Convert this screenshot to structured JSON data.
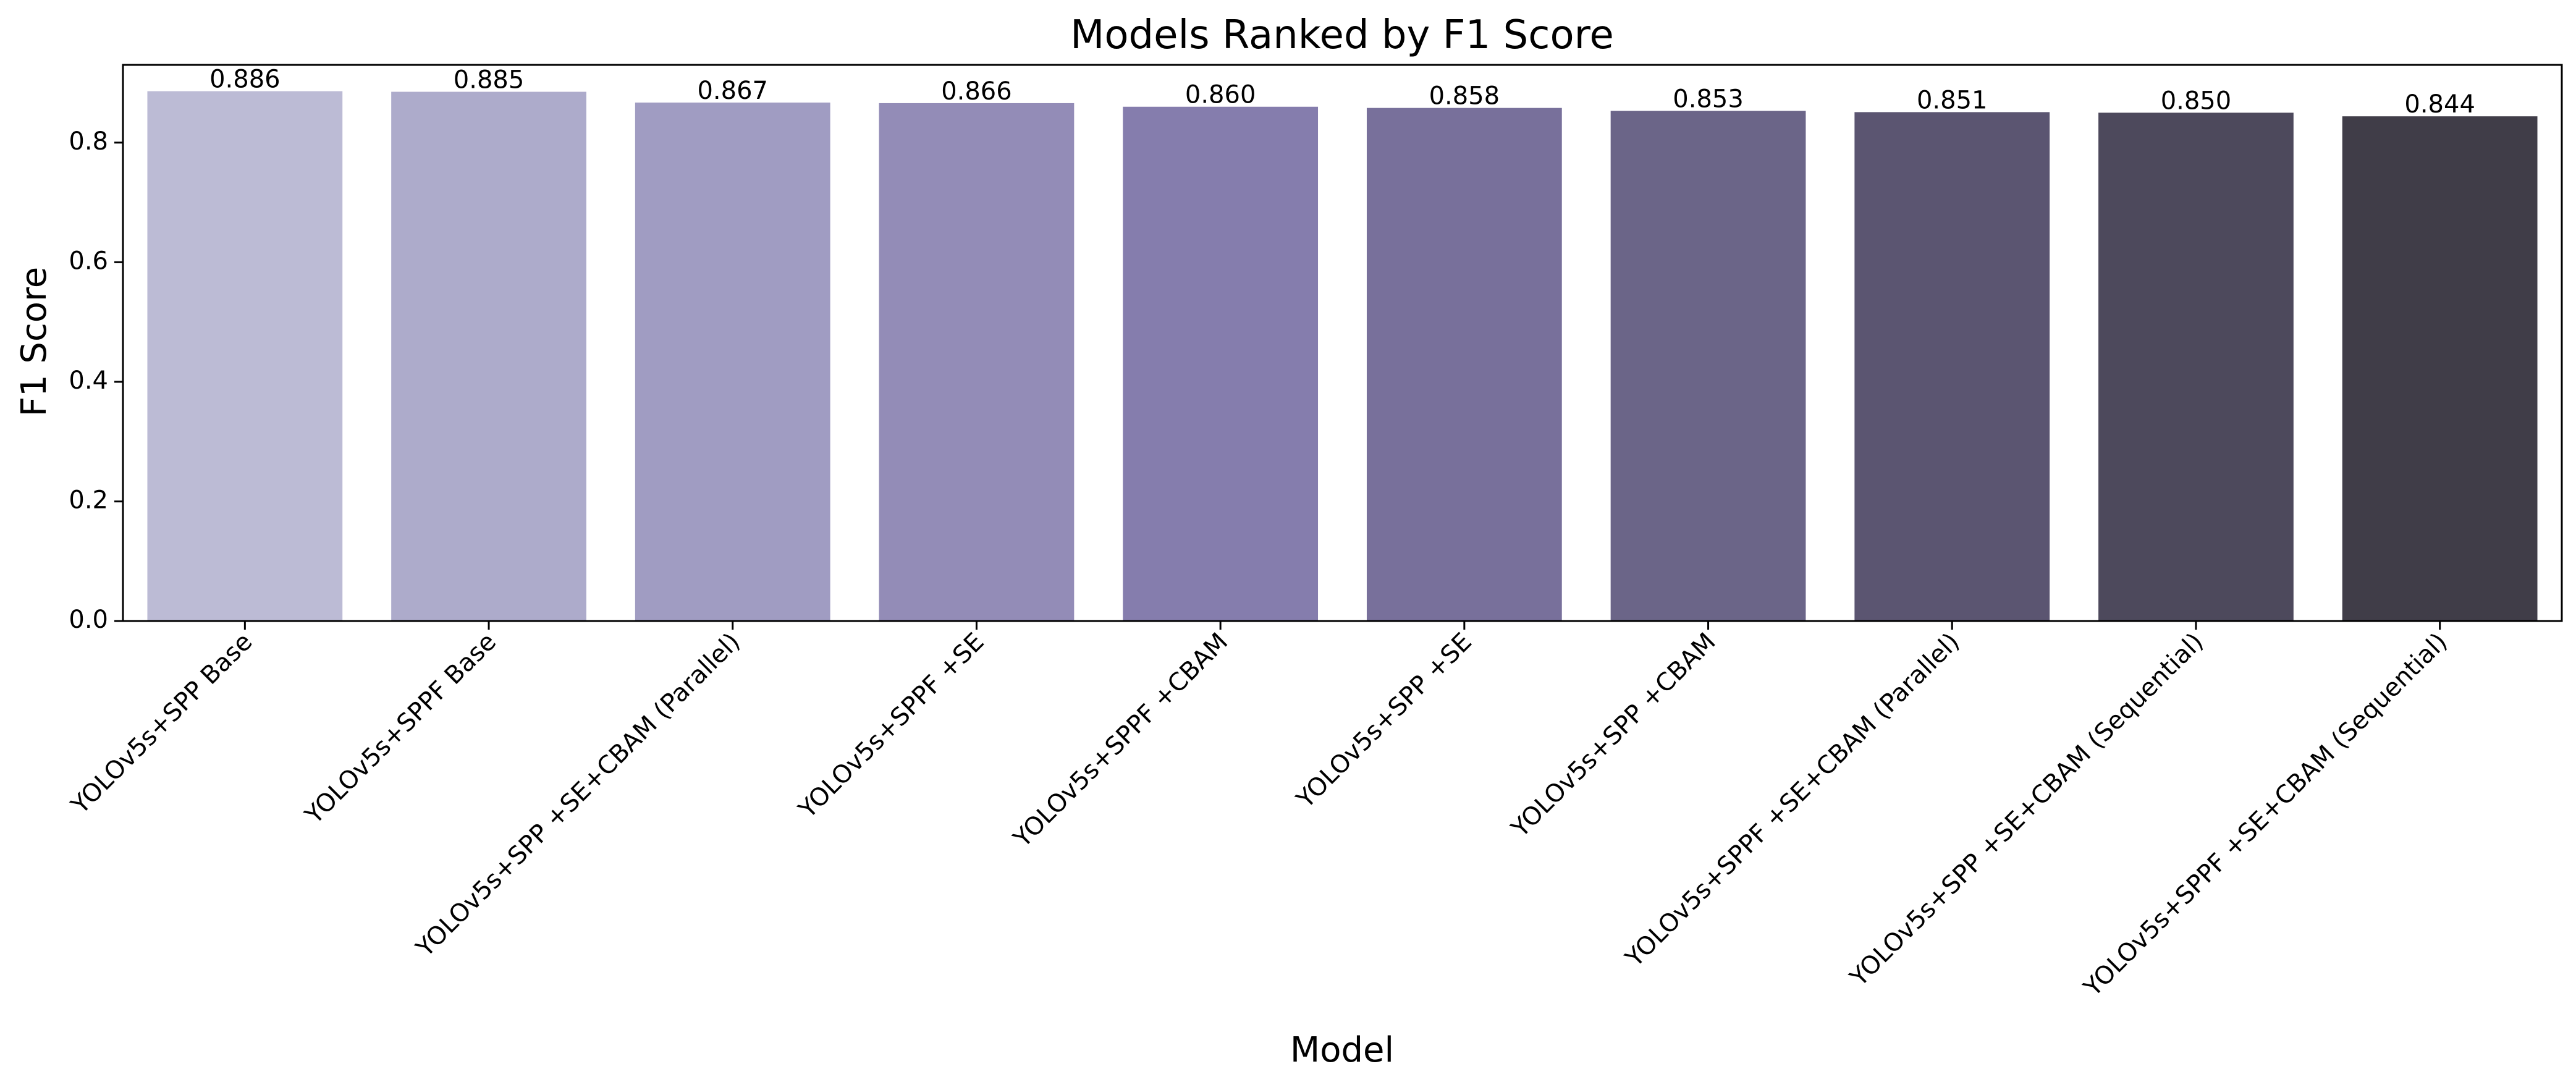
{
  "chart_data": {
    "type": "bar",
    "title": "Models Ranked by F1 Score",
    "xlabel": "Model",
    "ylabel": "F1 Score",
    "ylim": [
      0,
      0.93
    ],
    "yticks": [
      0.0,
      0.2,
      0.4,
      0.6,
      0.8
    ],
    "ytick_labels": [
      "0.0",
      "0.2",
      "0.4",
      "0.6",
      "0.8"
    ],
    "grid": false,
    "categories": [
      "YOLOv5s+SPP Base",
      "YOLOv5s+SPPF Base",
      "YOLOv5s+SPP +SE+CBAM (Parallel)",
      "YOLOv5s+SPPF +SE",
      "YOLOv5s+SPPF +CBAM",
      "YOLOv5s+SPP +SE",
      "YOLOv5s+SPP +CBAM",
      "YOLOv5s+SPPF +SE+CBAM (Parallel)",
      "YOLOv5s+SPP +SE+CBAM (Sequential)",
      "YOLOv5s+SPPF +SE+CBAM (Sequential)"
    ],
    "values": [
      0.886,
      0.885,
      0.867,
      0.866,
      0.86,
      0.858,
      0.853,
      0.851,
      0.85,
      0.844
    ],
    "value_labels": [
      "0.886",
      "0.885",
      "0.867",
      "0.866",
      "0.860",
      "0.858",
      "0.853",
      "0.851",
      "0.850",
      "0.844"
    ],
    "colors": [
      "#bcbbd5",
      "#adabcb",
      "#a09cc2",
      "#938cb7",
      "#857dad",
      "#78709b",
      "#6b6588",
      "#5b5571",
      "#4d495c",
      "#403d48"
    ]
  }
}
